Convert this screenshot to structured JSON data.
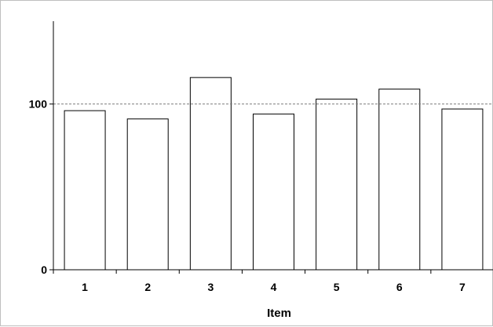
{
  "chart_data": {
    "type": "bar",
    "categories": [
      "1",
      "2",
      "3",
      "4",
      "5",
      "6",
      "7"
    ],
    "values": [
      96,
      91,
      116,
      94,
      103,
      109,
      97
    ],
    "title": "",
    "xlabel": "Item",
    "ylabel": "",
    "ylim": [
      0,
      150
    ],
    "yticks": [
      "0",
      "100"
    ],
    "reference_line": 100,
    "grid": false,
    "colors": {
      "bar_fill": "#ffffff",
      "bar_stroke": "#000000",
      "reference": "#7f7f7f",
      "axis": "#000000"
    }
  }
}
